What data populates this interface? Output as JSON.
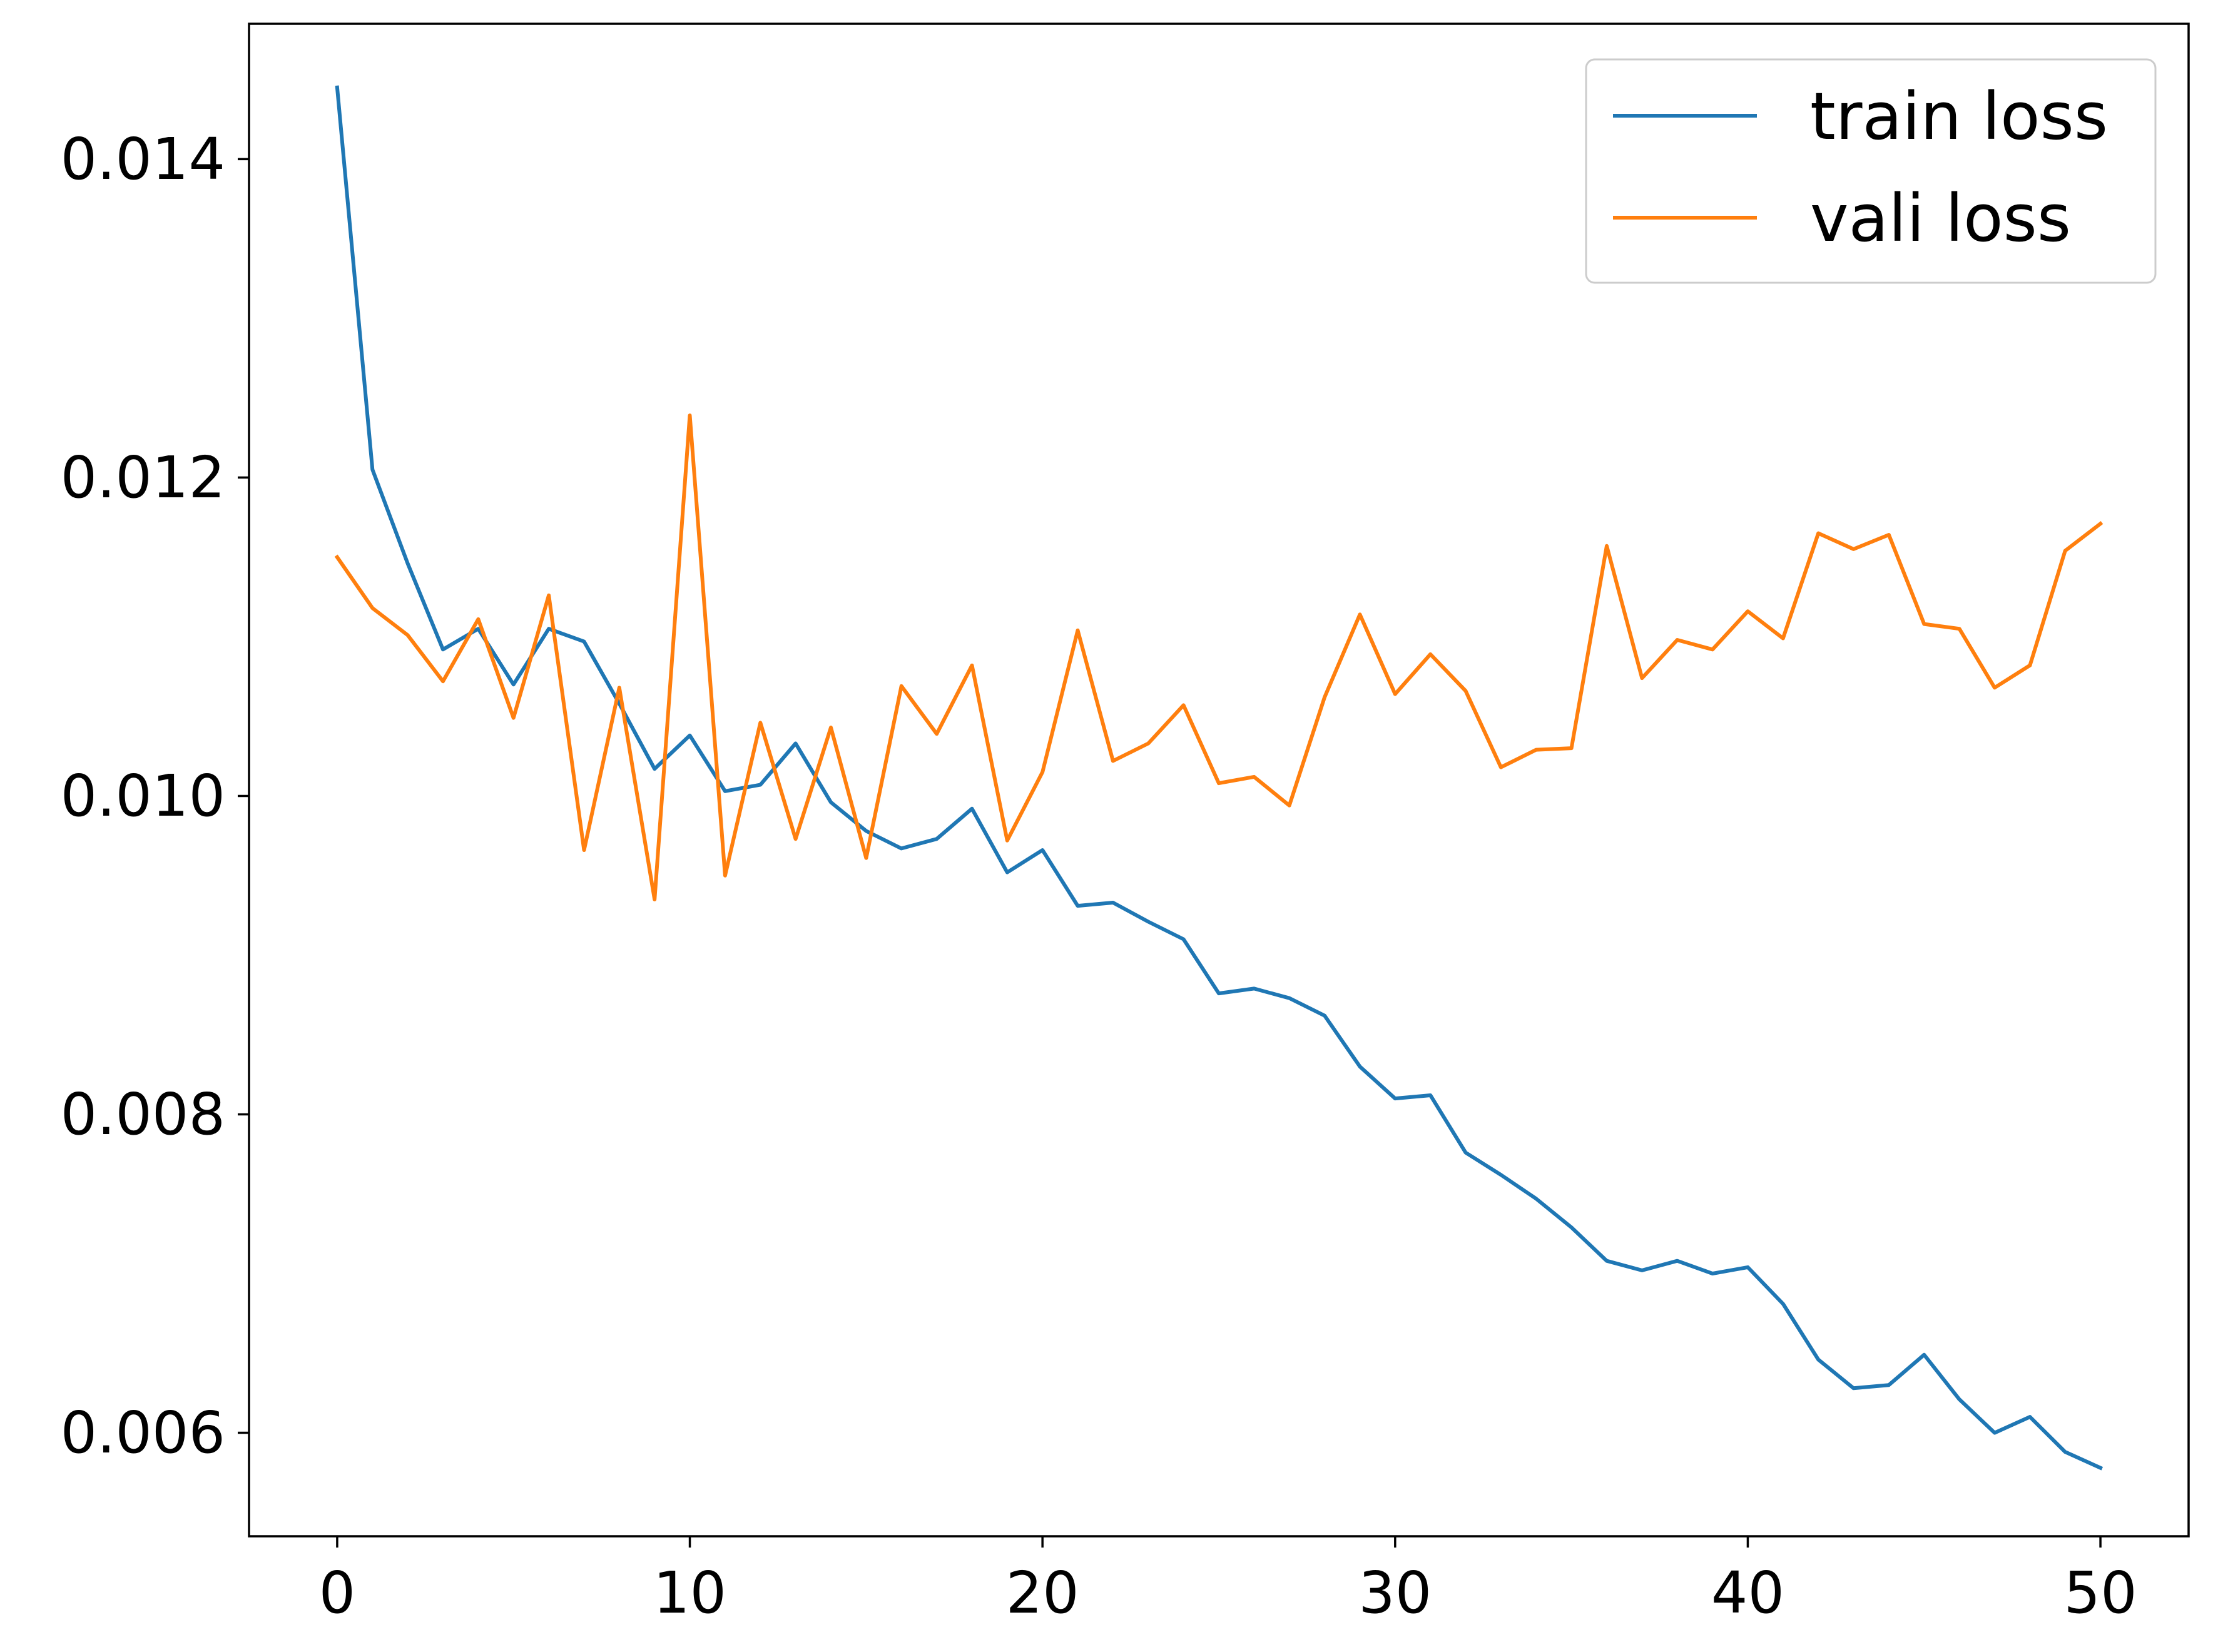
{
  "chart_data": {
    "type": "line",
    "title": "",
    "xlabel": "",
    "ylabel": "",
    "xlim": [
      -2.5,
      52.5
    ],
    "ylim": [
      0.00535,
      0.01485
    ],
    "xticks": [
      0,
      10,
      20,
      30,
      40,
      50
    ],
    "xtick_labels": [
      "0",
      "10",
      "20",
      "30",
      "40",
      "50"
    ],
    "yticks": [
      0.006,
      0.008,
      0.01,
      0.012,
      0.014
    ],
    "ytick_labels": [
      "0.006",
      "0.008",
      "0.010",
      "0.012",
      "0.014"
    ],
    "grid": false,
    "legend_position": "top-right",
    "x": [
      0,
      1,
      2,
      3,
      4,
      5,
      6,
      7,
      8,
      9,
      10,
      11,
      12,
      13,
      14,
      15,
      16,
      17,
      18,
      19,
      20,
      21,
      22,
      23,
      24,
      25,
      26,
      27,
      28,
      29,
      30,
      31,
      32,
      33,
      34,
      35,
      36,
      37,
      38,
      39,
      40,
      41,
      42,
      43,
      44,
      45,
      46,
      47,
      48,
      49,
      50
    ],
    "series": [
      {
        "name": "train loss",
        "color": "#1f77b4",
        "values": [
          0.01445,
          0.01205,
          0.01146,
          0.01092,
          0.01105,
          0.0107,
          0.01105,
          0.01097,
          0.01058,
          0.01017,
          0.01038,
          0.01003,
          0.01007,
          0.01033,
          0.00996,
          0.00978,
          0.00967,
          0.00973,
          0.00992,
          0.00952,
          0.00966,
          0.00931,
          0.00933,
          0.00921,
          0.0091,
          0.00876,
          0.00879,
          0.00873,
          0.00862,
          0.0083,
          0.0081,
          0.00812,
          0.00776,
          0.00762,
          0.00747,
          0.00729,
          0.00708,
          0.00702,
          0.00708,
          0.007,
          0.00704,
          0.00681,
          0.00646,
          0.00628,
          0.0063,
          0.00649,
          0.00621,
          0.006,
          0.0061,
          0.00588,
          0.00578
        ]
      },
      {
        "name": "vali loss",
        "color": "#ff7f0e",
        "values": [
          0.0115,
          0.01118,
          0.01101,
          0.01072,
          0.01111,
          0.01049,
          0.01126,
          0.00966,
          0.01068,
          0.00935,
          0.01239,
          0.0095,
          0.01046,
          0.00973,
          0.01043,
          0.00961,
          0.01069,
          0.01039,
          0.01082,
          0.00972,
          0.01015,
          0.01104,
          0.01022,
          0.01033,
          0.01057,
          0.01008,
          0.01012,
          0.00994,
          0.01062,
          0.01114,
          0.01064,
          0.01089,
          0.01066,
          0.01018,
          0.01029,
          0.0103,
          0.01157,
          0.01074,
          0.01098,
          0.01092,
          0.01116,
          0.01099,
          0.01165,
          0.01155,
          0.01164,
          0.01108,
          0.01105,
          0.01068,
          0.01082,
          0.01154,
          0.01171
        ]
      }
    ]
  }
}
